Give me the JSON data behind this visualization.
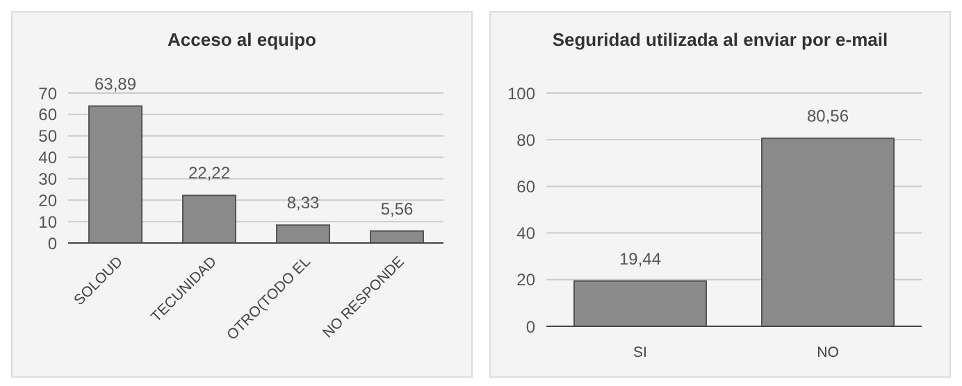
{
  "chart_data": [
    {
      "type": "bar",
      "title": "Acceso al equipo",
      "categories": [
        "SOLOUD",
        "TECUNIDAD",
        "OTRO(TODO EL",
        "NO RESPONDE"
      ],
      "values": [
        63.89,
        22.22,
        8.33,
        5.56
      ],
      "value_labels": [
        "63,89",
        "22,22",
        "8,33",
        "5,56"
      ],
      "color": "#8a8a8a",
      "ylim": [
        0,
        70
      ],
      "yticks": [
        0,
        10,
        20,
        30,
        40,
        50,
        60,
        70
      ],
      "grid": "y"
    },
    {
      "type": "bar",
      "title": "Seguridad utilizada al enviar por e-mail",
      "categories": [
        "SI",
        "NO"
      ],
      "values": [
        19.44,
        80.56
      ],
      "value_labels": [
        "19,44",
        "80,56"
      ],
      "color": "#8a8a8a",
      "ylim": [
        0,
        100
      ],
      "yticks": [
        0,
        20,
        40,
        60,
        80,
        100
      ],
      "grid": "y"
    }
  ]
}
